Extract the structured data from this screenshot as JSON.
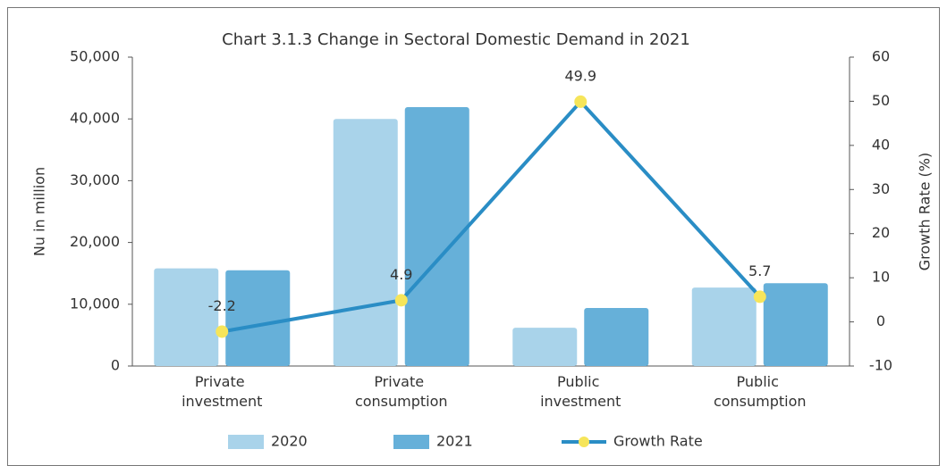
{
  "chart_data": {
    "type": "bar",
    "title": "Chart 3.1.3 Change in Sectoral Domestic Demand in 2021",
    "categories": [
      "Private investment",
      "Private consumption",
      "Public investment",
      "Public consumption"
    ],
    "series": [
      {
        "name": "2020",
        "color": "#a9d3ea",
        "values": [
          15800,
          40000,
          6200,
          12700
        ]
      },
      {
        "name": "2021",
        "color": "#66b0d9",
        "values": [
          15500,
          41900,
          9400,
          13400
        ]
      },
      {
        "name": "Growth Rate",
        "type": "line",
        "axis": "y2",
        "color": "#2a8dc5",
        "marker_color": "#f6e55a",
        "values": [
          -2.2,
          4.9,
          49.9,
          5.7
        ]
      }
    ],
    "ylabel": "Nu in million",
    "y2label": "Growth Rate (%)",
    "ylim": [
      0,
      50000
    ],
    "yticks": [
      {
        "value": 0,
        "label": "0"
      },
      {
        "value": 10000,
        "label": "10,000"
      },
      {
        "value": 20000,
        "label": "20,000"
      },
      {
        "value": 30000,
        "label": "30,000"
      },
      {
        "value": 40000,
        "label": "40,000"
      },
      {
        "value": 50000,
        "label": "50,000"
      }
    ],
    "y2lim": [
      -10,
      60
    ],
    "y2ticks": [
      -10,
      0,
      10,
      20,
      30,
      40,
      50,
      60
    ],
    "grid": false,
    "legend": "bottom"
  }
}
